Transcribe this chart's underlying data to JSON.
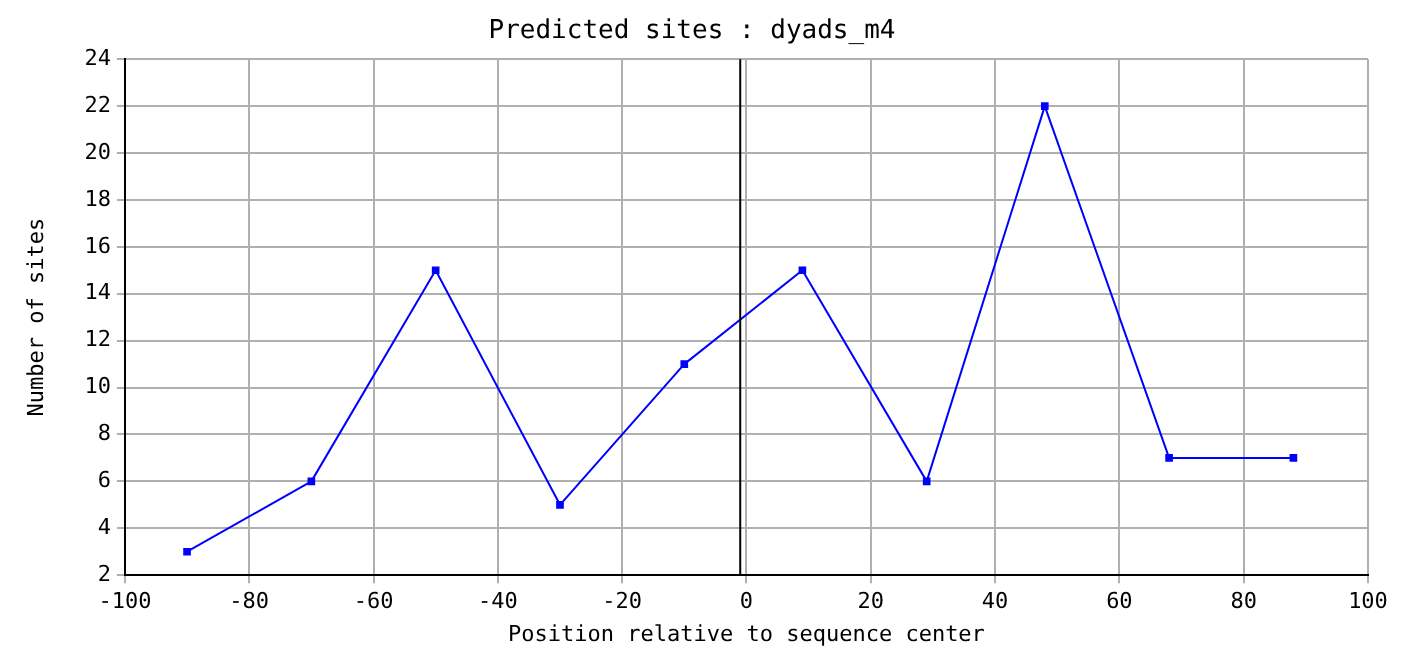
{
  "chart_data": {
    "type": "line",
    "title": "Predicted sites : dyads_m4",
    "xlabel": "Position relative to sequence center",
    "ylabel": "Number of sites",
    "x": [
      -90,
      -70,
      -50,
      -30,
      -10,
      9,
      29,
      48,
      68,
      88
    ],
    "series": [
      {
        "color": "#0000ff",
        "values": [
          3,
          6,
          15,
          5,
          11,
          15,
          6,
          22,
          7,
          7
        ]
      }
    ],
    "xlim": [
      -100,
      100
    ],
    "xticks": [
      -100,
      -80,
      -60,
      -40,
      -20,
      0,
      20,
      40,
      60,
      80,
      100
    ],
    "ylim": [
      2,
      24
    ],
    "yticks": [
      2,
      4,
      6,
      8,
      10,
      12,
      14,
      16,
      18,
      20,
      22,
      24
    ],
    "ref_lines": [
      {
        "axis": "x",
        "value": -1,
        "color": "#000000"
      }
    ],
    "grid": true,
    "legend": false,
    "marker": "square",
    "line_style": "solid"
  }
}
